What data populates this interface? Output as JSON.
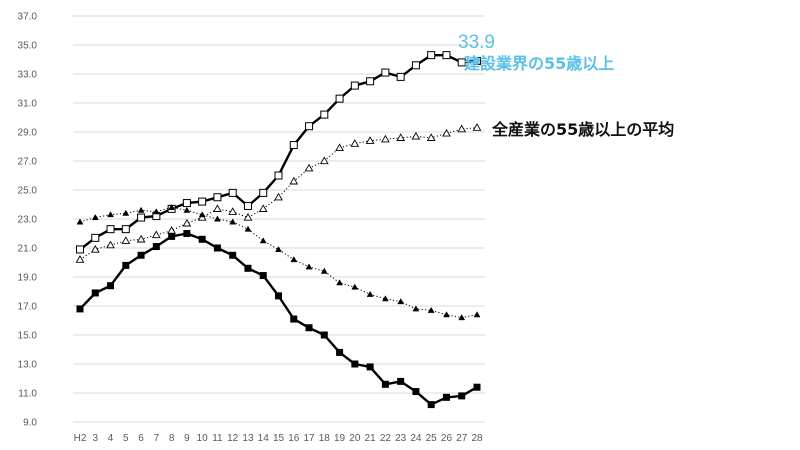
{
  "chart_data": {
    "type": "line",
    "x": [
      "H2",
      "3",
      "4",
      "5",
      "6",
      "7",
      "8",
      "9",
      "10",
      "11",
      "12",
      "13",
      "14",
      "15",
      "16",
      "17",
      "18",
      "19",
      "20",
      "21",
      "22",
      "23",
      "24",
      "25",
      "26",
      "27",
      "28"
    ],
    "ylim": [
      9.0,
      37.0
    ],
    "yticks": [
      "9.0",
      "11.0",
      "13.0",
      "15.0",
      "17.0",
      "19.0",
      "21.0",
      "23.0",
      "25.0",
      "27.0",
      "29.0",
      "31.0",
      "33.0",
      "35.0",
      "37.0"
    ],
    "grid": true,
    "series": [
      {
        "name": "建設業界の55歳以上",
        "style": "solid-open-square",
        "values": [
          20.9,
          21.7,
          22.3,
          22.3,
          23.1,
          23.2,
          23.7,
          24.1,
          24.2,
          24.5,
          24.8,
          23.9,
          24.8,
          26.0,
          28.1,
          29.4,
          30.2,
          31.3,
          32.2,
          32.5,
          33.1,
          32.8,
          33.6,
          34.3,
          34.3,
          33.8,
          33.9
        ]
      },
      {
        "name": "全産業の55歳以上の平均",
        "style": "dotted-open-triangle",
        "values": [
          20.2,
          20.9,
          21.2,
          21.5,
          21.6,
          21.9,
          22.2,
          22.7,
          23.1,
          23.7,
          23.5,
          23.1,
          23.7,
          24.5,
          25.6,
          26.5,
          27.0,
          27.9,
          28.2,
          28.4,
          28.5,
          28.6,
          28.7,
          28.6,
          28.9,
          29.2,
          29.3
        ]
      },
      {
        "name": "",
        "style": "solid-filled-square",
        "values": [
          16.8,
          17.9,
          18.4,
          19.8,
          20.5,
          21.1,
          21.8,
          22.0,
          21.6,
          21.0,
          20.5,
          19.6,
          19.1,
          17.7,
          16.1,
          15.5,
          15.0,
          13.8,
          13.0,
          12.8,
          11.6,
          11.8,
          11.1,
          10.2,
          10.7,
          10.8,
          11.4
        ]
      },
      {
        "name": "",
        "style": "dotted-filled-triangle",
        "values": [
          22.8,
          23.1,
          23.3,
          23.4,
          23.6,
          23.5,
          23.8,
          23.6,
          23.3,
          23.0,
          22.8,
          22.3,
          21.5,
          20.9,
          20.2,
          19.7,
          19.4,
          18.6,
          18.3,
          17.8,
          17.5,
          17.3,
          16.8,
          16.7,
          16.4,
          16.2,
          16.4
        ]
      }
    ],
    "annotations": {
      "value_label": "33.9",
      "construction_label": "建設業界の55歳以上",
      "all_industry_label": "全産業の55歳以上の平均"
    },
    "colors": {
      "grid": "#d9d9d9",
      "line": "#000000",
      "highlight_marker": "#9dc3e6",
      "annotation_blue": "#5bc0e6"
    }
  }
}
